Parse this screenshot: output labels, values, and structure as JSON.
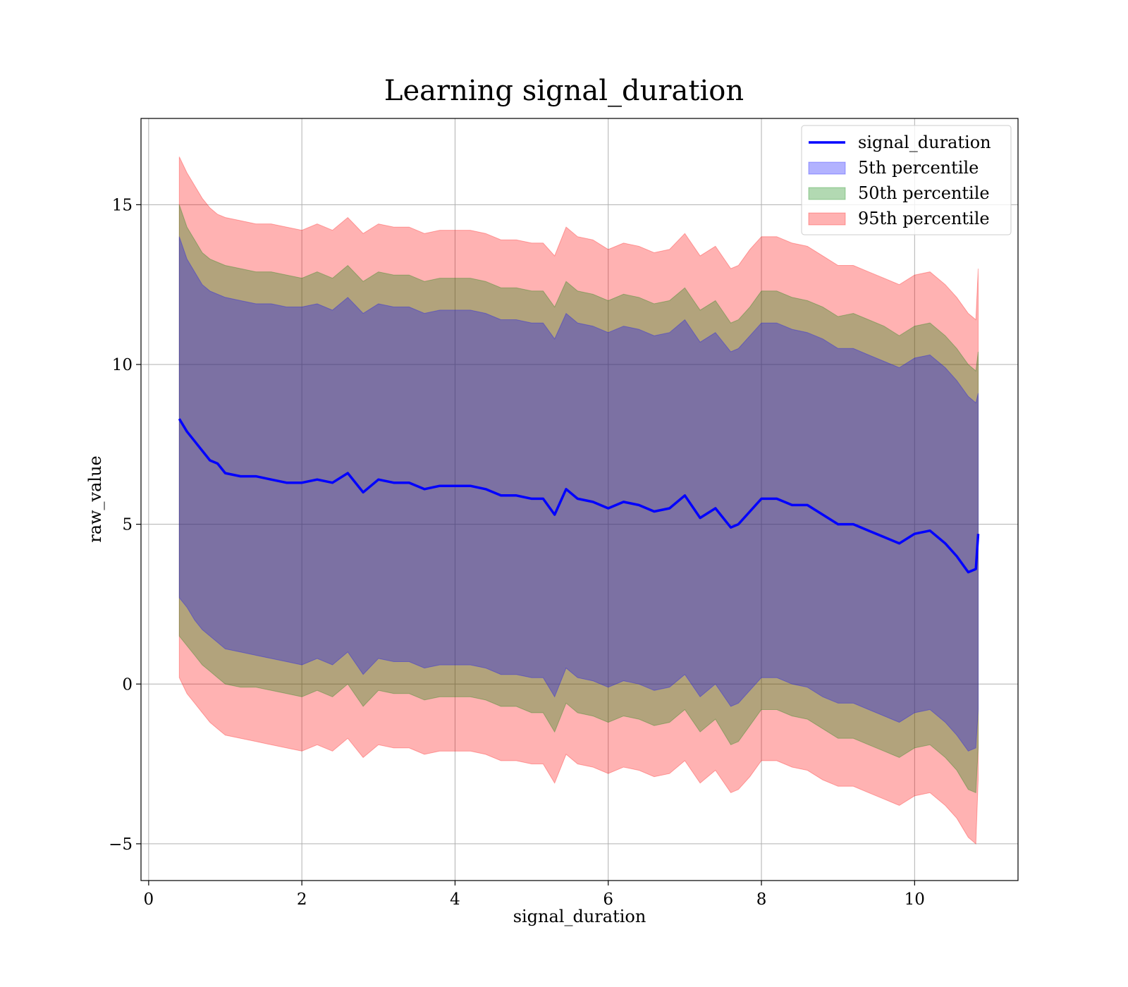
{
  "chart_data": {
    "type": "line",
    "title": "Learning signal_duration",
    "xlabel": "signal_duration",
    "ylabel": "raw_value",
    "xlim": [
      -0.1,
      11.35
    ],
    "ylim": [
      -6.15,
      17.7
    ],
    "xticks": [
      0,
      2,
      4,
      6,
      8,
      10
    ],
    "yticks": [
      -5,
      0,
      5,
      10,
      15
    ],
    "xtick_labels": [
      "0",
      "2",
      "4",
      "6",
      "8",
      "10"
    ],
    "ytick_labels": [
      "−5",
      "0",
      "5",
      "10",
      "15"
    ],
    "grid": true,
    "legend_position": "top-right",
    "x": [
      0.4,
      0.5,
      0.6,
      0.7,
      0.8,
      0.9,
      1.0,
      1.2,
      1.4,
      1.6,
      1.8,
      2.0,
      2.2,
      2.4,
      2.6,
      2.8,
      3.0,
      3.2,
      3.4,
      3.6,
      3.8,
      4.0,
      4.2,
      4.4,
      4.6,
      4.8,
      5.0,
      5.15,
      5.3,
      5.45,
      5.6,
      5.8,
      6.0,
      6.2,
      6.4,
      6.6,
      6.8,
      7.0,
      7.2,
      7.4,
      7.6,
      7.7,
      7.85,
      8.0,
      8.2,
      8.4,
      8.6,
      8.8,
      9.0,
      9.2,
      9.4,
      9.6,
      9.8,
      10.0,
      10.2,
      10.4,
      10.55,
      10.7,
      10.8,
      10.83
    ],
    "series": [
      {
        "name": "signal_duration",
        "kind": "line",
        "values": [
          8.3,
          7.9,
          7.6,
          7.3,
          7.0,
          6.9,
          6.6,
          6.5,
          6.5,
          6.4,
          6.3,
          6.3,
          6.4,
          6.3,
          6.6,
          6.0,
          6.4,
          6.3,
          6.3,
          6.1,
          6.2,
          6.2,
          6.2,
          6.1,
          5.9,
          5.9,
          5.8,
          5.8,
          5.3,
          6.1,
          5.8,
          5.7,
          5.5,
          5.7,
          5.6,
          5.4,
          5.5,
          5.9,
          5.2,
          5.5,
          4.9,
          5.0,
          5.4,
          5.8,
          5.8,
          5.6,
          5.6,
          5.3,
          5.0,
          5.0,
          4.8,
          4.6,
          4.4,
          4.7,
          4.8,
          4.4,
          4.0,
          3.5,
          3.6,
          4.7
        ],
        "color": "#0000ff"
      },
      {
        "name": "5th percentile",
        "kind": "band",
        "color": "#0000ff",
        "upper": [
          14.0,
          13.3,
          12.9,
          12.5,
          12.3,
          12.2,
          12.1,
          12.0,
          11.9,
          11.9,
          11.8,
          11.8,
          11.9,
          11.7,
          12.1,
          11.6,
          11.9,
          11.8,
          11.8,
          11.6,
          11.7,
          11.7,
          11.7,
          11.6,
          11.4,
          11.4,
          11.3,
          11.3,
          10.8,
          11.6,
          11.3,
          11.2,
          11.0,
          11.2,
          11.1,
          10.9,
          11.0,
          11.4,
          10.7,
          11.0,
          10.4,
          10.5,
          10.9,
          11.3,
          11.3,
          11.1,
          11.0,
          10.8,
          10.5,
          10.5,
          10.3,
          10.1,
          9.9,
          10.2,
          10.3,
          9.9,
          9.5,
          9.0,
          8.8,
          9.1
        ],
        "lower": [
          2.7,
          2.4,
          2.0,
          1.7,
          1.5,
          1.3,
          1.1,
          1.0,
          0.9,
          0.8,
          0.7,
          0.6,
          0.8,
          0.6,
          1.0,
          0.3,
          0.8,
          0.7,
          0.7,
          0.5,
          0.6,
          0.6,
          0.6,
          0.5,
          0.3,
          0.3,
          0.2,
          0.2,
          -0.4,
          0.5,
          0.2,
          0.1,
          -0.1,
          0.1,
          0.0,
          -0.2,
          -0.1,
          0.3,
          -0.4,
          0.0,
          -0.7,
          -0.6,
          -0.2,
          0.2,
          0.2,
          0.0,
          -0.1,
          -0.4,
          -0.6,
          -0.6,
          -0.8,
          -1.0,
          -1.2,
          -0.9,
          -0.8,
          -1.2,
          -1.6,
          -2.1,
          -2.0,
          -0.8
        ]
      },
      {
        "name": "50th percentile",
        "kind": "band",
        "color": "#008000",
        "upper": [
          15.0,
          14.3,
          13.9,
          13.5,
          13.3,
          13.2,
          13.1,
          13.0,
          12.9,
          12.9,
          12.8,
          12.7,
          12.9,
          12.7,
          13.1,
          12.6,
          12.9,
          12.8,
          12.8,
          12.6,
          12.7,
          12.7,
          12.7,
          12.6,
          12.4,
          12.4,
          12.3,
          12.3,
          11.8,
          12.6,
          12.3,
          12.2,
          12.0,
          12.2,
          12.1,
          11.9,
          12.0,
          12.4,
          11.7,
          12.0,
          11.3,
          11.4,
          11.8,
          12.3,
          12.3,
          12.1,
          12.0,
          11.8,
          11.5,
          11.6,
          11.4,
          11.2,
          10.9,
          11.2,
          11.3,
          10.9,
          10.5,
          10.0,
          9.8,
          10.4
        ],
        "lower": [
          1.5,
          1.2,
          0.9,
          0.6,
          0.4,
          0.2,
          0.0,
          -0.1,
          -0.1,
          -0.2,
          -0.3,
          -0.4,
          -0.2,
          -0.4,
          0.0,
          -0.7,
          -0.2,
          -0.3,
          -0.3,
          -0.5,
          -0.4,
          -0.4,
          -0.4,
          -0.5,
          -0.7,
          -0.7,
          -0.9,
          -0.9,
          -1.5,
          -0.6,
          -0.9,
          -1.0,
          -1.2,
          -1.0,
          -1.1,
          -1.3,
          -1.2,
          -0.8,
          -1.5,
          -1.1,
          -1.9,
          -1.8,
          -1.3,
          -0.8,
          -0.8,
          -1.0,
          -1.1,
          -1.4,
          -1.7,
          -1.7,
          -1.9,
          -2.1,
          -2.3,
          -2.0,
          -1.9,
          -2.3,
          -2.7,
          -3.3,
          -3.4,
          -2.0
        ]
      },
      {
        "name": "95th percentile",
        "kind": "band",
        "color": "#ff0000",
        "upper": [
          16.5,
          16.0,
          15.6,
          15.2,
          14.9,
          14.7,
          14.6,
          14.5,
          14.4,
          14.4,
          14.3,
          14.2,
          14.4,
          14.2,
          14.6,
          14.1,
          14.4,
          14.3,
          14.3,
          14.1,
          14.2,
          14.2,
          14.2,
          14.1,
          13.9,
          13.9,
          13.8,
          13.8,
          13.4,
          14.3,
          14.0,
          13.9,
          13.6,
          13.8,
          13.7,
          13.5,
          13.6,
          14.1,
          13.4,
          13.7,
          13.0,
          13.1,
          13.6,
          14.0,
          14.0,
          13.8,
          13.7,
          13.4,
          13.1,
          13.1,
          12.9,
          12.7,
          12.5,
          12.8,
          12.9,
          12.5,
          12.1,
          11.6,
          11.4,
          13.0
        ],
        "lower": [
          0.2,
          -0.3,
          -0.6,
          -0.9,
          -1.2,
          -1.4,
          -1.6,
          -1.7,
          -1.8,
          -1.9,
          -2.0,
          -2.1,
          -1.9,
          -2.1,
          -1.7,
          -2.3,
          -1.9,
          -2.0,
          -2.0,
          -2.2,
          -2.1,
          -2.1,
          -2.1,
          -2.2,
          -2.4,
          -2.4,
          -2.5,
          -2.5,
          -3.1,
          -2.2,
          -2.5,
          -2.6,
          -2.8,
          -2.6,
          -2.7,
          -2.9,
          -2.8,
          -2.4,
          -3.1,
          -2.7,
          -3.4,
          -3.3,
          -2.9,
          -2.4,
          -2.4,
          -2.6,
          -2.7,
          -3.0,
          -3.2,
          -3.2,
          -3.4,
          -3.6,
          -3.8,
          -3.5,
          -3.4,
          -3.8,
          -4.2,
          -4.8,
          -5.0,
          -3.0
        ]
      }
    ]
  }
}
